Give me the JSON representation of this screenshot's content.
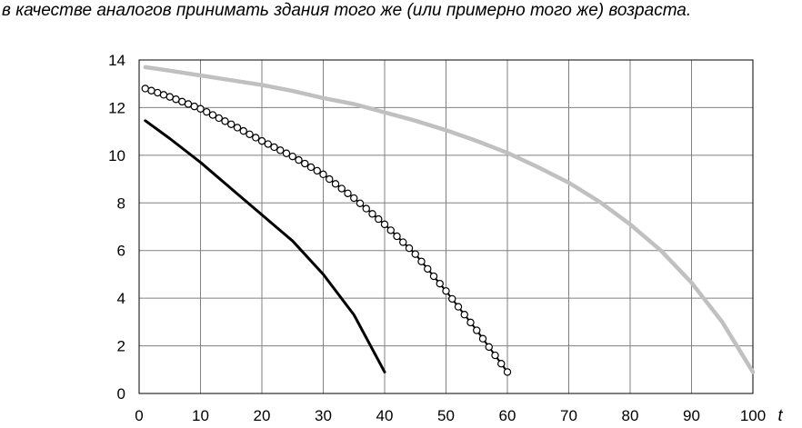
{
  "caption": "в качестве аналогов принимать здания того же (или примерно того же) возраста.",
  "chart_data": {
    "type": "line",
    "xlabel": "t",
    "ylabel": "",
    "xlim": [
      0,
      100
    ],
    "ylim": [
      0,
      14
    ],
    "x_ticks": [
      0,
      10,
      20,
      30,
      40,
      50,
      60,
      70,
      80,
      90,
      100
    ],
    "y_ticks": [
      0,
      2,
      4,
      6,
      8,
      10,
      12,
      14
    ],
    "grid": true,
    "legend": "none",
    "series": [
      {
        "color": "#c0c0c0",
        "marker": "none",
        "x": [
          1,
          5,
          10,
          15,
          20,
          25,
          30,
          35,
          40,
          45,
          50,
          55,
          60,
          65,
          70,
          75,
          80,
          85,
          90,
          95,
          100
        ],
        "y": [
          13.7,
          13.55,
          13.35,
          13.15,
          12.95,
          12.7,
          12.4,
          12.15,
          11.8,
          11.45,
          11.05,
          10.6,
          10.1,
          9.5,
          8.85,
          8.05,
          7.1,
          6.0,
          4.65,
          3.0,
          0.9
        ]
      },
      {
        "color": "#000000",
        "marker": "circle",
        "x": [
          1,
          5,
          10,
          15,
          20,
          25,
          30,
          35,
          40,
          45,
          50,
          55,
          60
        ],
        "y": [
          12.8,
          12.45,
          11.95,
          11.3,
          10.6,
          9.95,
          9.2,
          8.2,
          7.1,
          5.85,
          4.3,
          2.65,
          0.9
        ]
      },
      {
        "color": "#000000",
        "marker": "none",
        "x": [
          1,
          5,
          10,
          15,
          20,
          25,
          30,
          35,
          40
        ],
        "y": [
          11.45,
          10.7,
          9.7,
          8.6,
          7.5,
          6.4,
          5.0,
          3.3,
          0.9
        ]
      }
    ]
  }
}
